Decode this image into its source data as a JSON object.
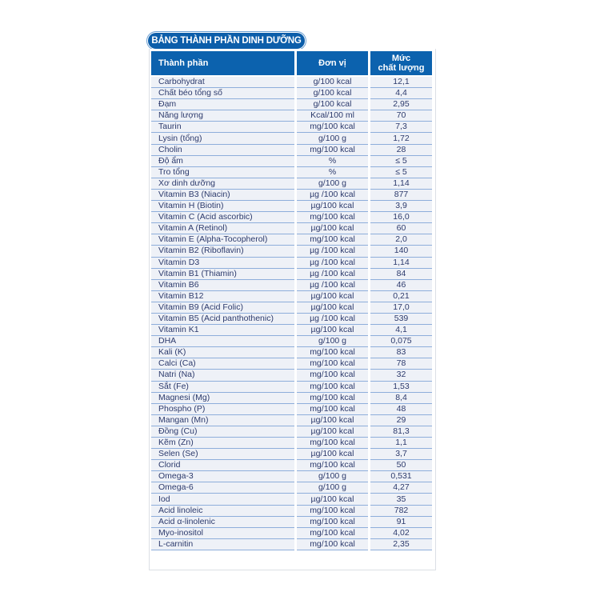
{
  "title": "BẢNG THÀNH PHẦN DINH DƯỠNG",
  "headers": {
    "ingredient": "Thành phần",
    "unit": "Đơn vị",
    "level_line1": "Mức",
    "level_line2": "chất lượng"
  },
  "rows": [
    [
      "Carbohydrat",
      "g/100 kcal",
      "12,1"
    ],
    [
      "Chất béo tổng số",
      "g/100 kcal",
      "4,4"
    ],
    [
      "Đạm",
      "g/100 kcal",
      "2,95"
    ],
    [
      "Năng lượng",
      "Kcal/100 ml",
      "70"
    ],
    [
      "Taurin",
      "mg/100 kcal",
      "7,3"
    ],
    [
      "Lysin (tổng)",
      "g/100 g",
      "1,72"
    ],
    [
      "Cholin",
      "mg/100 kcal",
      "28"
    ],
    [
      "Độ ẩm",
      "%",
      "≤ 5"
    ],
    [
      "Tro tổng",
      "%",
      "≤ 5"
    ],
    [
      "Xơ dinh dưỡng",
      "g/100 g",
      "1,14"
    ],
    [
      "Vitamin B3 (Niacin)",
      "µg /100 kcal",
      "877"
    ],
    [
      "Vitamin H (Biotin)",
      "µg/100 kcal",
      "3,9"
    ],
    [
      "Vitamin C (Acid ascorbic)",
      "mg/100 kcal",
      "16,0"
    ],
    [
      "Vitamin A (Retinol)",
      "µg/100 kcal",
      "60"
    ],
    [
      "Vitamin E (Alpha-Tocopherol)",
      "mg/100 kcal",
      "2,0"
    ],
    [
      "Vitamin B2 (Riboflavin)",
      "µg /100 kcal",
      "140"
    ],
    [
      "Vitamin D3",
      "µg /100 kcal",
      "1,14"
    ],
    [
      "Vitamin B1 (Thiamin)",
      "µg /100 kcal",
      "84"
    ],
    [
      "Vitamin B6",
      "µg /100 kcal",
      "46"
    ],
    [
      "Vitamin B12",
      "µg/100 kcal",
      "0,21"
    ],
    [
      "Vitamin B9 (Acid Folic)",
      "µg/100 kcal",
      "17,0"
    ],
    [
      "Vitamin B5 (Acid panthothenic)",
      "µg /100 kcal",
      "539"
    ],
    [
      "Vitamin K1",
      "µg/100 kcal",
      "4,1"
    ],
    [
      "DHA",
      "g/100 g",
      "0,075"
    ],
    [
      "Kali (K)",
      "mg/100 kcal",
      "83"
    ],
    [
      "Calci (Ca)",
      "mg/100 kcal",
      "78"
    ],
    [
      "Natri (Na)",
      "mg/100 kcal",
      "32"
    ],
    [
      "Sắt (Fe)",
      "mg/100 kcal",
      "1,53"
    ],
    [
      "Magnesi (Mg)",
      "mg/100 kcal",
      "8,4"
    ],
    [
      "Phospho (P)",
      "mg/100 kcal",
      "48"
    ],
    [
      "Mangan (Mn)",
      "µg/100 kcal",
      "29"
    ],
    [
      "Đồng (Cu)",
      "µg/100 kcal",
      "81,3"
    ],
    [
      "Kẽm (Zn)",
      "mg/100 kcal",
      "1,1"
    ],
    [
      "Selen (Se)",
      "µg/100 kcal",
      "3,7"
    ],
    [
      "Clorid",
      "mg/100 kcal",
      "50"
    ],
    [
      "Omega-3",
      "g/100 g",
      "0,531"
    ],
    [
      "Omega-6",
      "g/100 g",
      "4,27"
    ],
    [
      "Iod",
      "µg/100 kcal",
      "35"
    ],
    [
      "Acid linoleic",
      "mg/100 kcal",
      "782"
    ],
    [
      "Acid α-linolenic",
      "mg/100 kcal",
      "91"
    ],
    [
      "Myo-inositol",
      "mg/100 kcal",
      "4,02"
    ],
    [
      "L-carnitin",
      "mg/100 kcal",
      "2,35"
    ]
  ],
  "colors": {
    "header": "#0c62ae",
    "row_bg": "#eef1f7",
    "row_line": "#8eaedb",
    "text": "#2c3a6c"
  }
}
